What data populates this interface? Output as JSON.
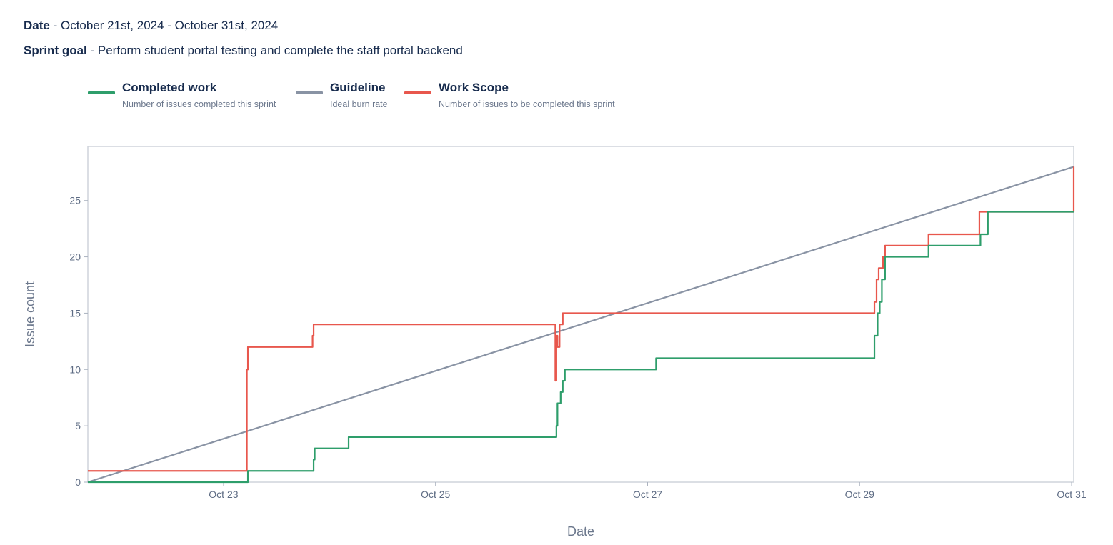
{
  "header": {
    "date_label": "Date",
    "date_value": " - October 21st, 2024 - October 31st, 2024",
    "goal_label": "Sprint goal",
    "goal_value": " - Perform student portal testing and complete the staff portal backend"
  },
  "legend": [
    {
      "id": "completed",
      "title": "Completed work",
      "desc": "Number of issues completed this sprint",
      "color": "#2e9e6b"
    },
    {
      "id": "guideline",
      "title": "Guideline",
      "desc": "Ideal burn rate",
      "color": "#8993a4"
    },
    {
      "id": "scope",
      "title": "Work Scope",
      "desc": "Number of issues to be completed this sprint",
      "color": "#e8574d"
    }
  ],
  "chart_data": {
    "type": "line",
    "title": "",
    "xlabel": "Date",
    "ylabel": "Issue count",
    "xlim": [
      -1.28,
      8.02
    ],
    "ylim": [
      0,
      29.8
    ],
    "x_unit": "days since Oct 23",
    "x_ticks": [
      {
        "value": 0,
        "label": "Oct 23"
      },
      {
        "value": 2,
        "label": "Oct 25"
      },
      {
        "value": 4,
        "label": "Oct 27"
      },
      {
        "value": 6,
        "label": "Oct 29"
      },
      {
        "value": 8,
        "label": "Oct 31"
      }
    ],
    "y_ticks": [
      0,
      5,
      10,
      15,
      20,
      25
    ],
    "series": [
      {
        "name": "Guideline",
        "color": "#8993a4",
        "step": false,
        "points": [
          [
            -1.28,
            0
          ],
          [
            8.02,
            28
          ]
        ]
      },
      {
        "name": "Work Scope",
        "color": "#e8574d",
        "step": true,
        "points": [
          [
            -1.28,
            1
          ],
          [
            0.22,
            1
          ],
          [
            0.22,
            10
          ],
          [
            0.23,
            12
          ],
          [
            0.83,
            12
          ],
          [
            0.84,
            13
          ],
          [
            0.85,
            14
          ],
          [
            3.13,
            14
          ],
          [
            3.13,
            9
          ],
          [
            3.14,
            13
          ],
          [
            3.15,
            12
          ],
          [
            3.16,
            12
          ],
          [
            3.17,
            14
          ],
          [
            3.19,
            14
          ],
          [
            3.2,
            15
          ],
          [
            6.13,
            15
          ],
          [
            6.14,
            16
          ],
          [
            6.15,
            16
          ],
          [
            6.16,
            18
          ],
          [
            6.18,
            19
          ],
          [
            6.2,
            19
          ],
          [
            6.22,
            20
          ],
          [
            6.24,
            21
          ],
          [
            6.65,
            21
          ],
          [
            6.65,
            22
          ],
          [
            7.13,
            22
          ],
          [
            7.13,
            24
          ],
          [
            8.02,
            24
          ],
          [
            8.02,
            28
          ]
        ]
      },
      {
        "name": "Completed work",
        "color": "#2e9e6b",
        "step": true,
        "points": [
          [
            -1.28,
            0
          ],
          [
            0.22,
            0
          ],
          [
            0.23,
            1
          ],
          [
            0.84,
            1
          ],
          [
            0.85,
            2
          ],
          [
            0.86,
            3
          ],
          [
            1.17,
            3
          ],
          [
            1.18,
            4
          ],
          [
            3.13,
            4
          ],
          [
            3.14,
            5
          ],
          [
            3.15,
            7
          ],
          [
            3.17,
            7
          ],
          [
            3.18,
            8
          ],
          [
            3.2,
            9
          ],
          [
            3.22,
            10
          ],
          [
            4.07,
            10
          ],
          [
            4.08,
            11
          ],
          [
            6.13,
            11
          ],
          [
            6.14,
            13
          ],
          [
            6.15,
            13
          ],
          [
            6.17,
            15
          ],
          [
            6.19,
            16
          ],
          [
            6.21,
            18
          ],
          [
            6.23,
            18
          ],
          [
            6.24,
            20
          ],
          [
            6.65,
            20
          ],
          [
            6.65,
            21
          ],
          [
            7.13,
            21
          ],
          [
            7.14,
            22
          ],
          [
            7.2,
            22
          ],
          [
            7.21,
            24
          ],
          [
            8.02,
            24
          ]
        ]
      }
    ]
  }
}
